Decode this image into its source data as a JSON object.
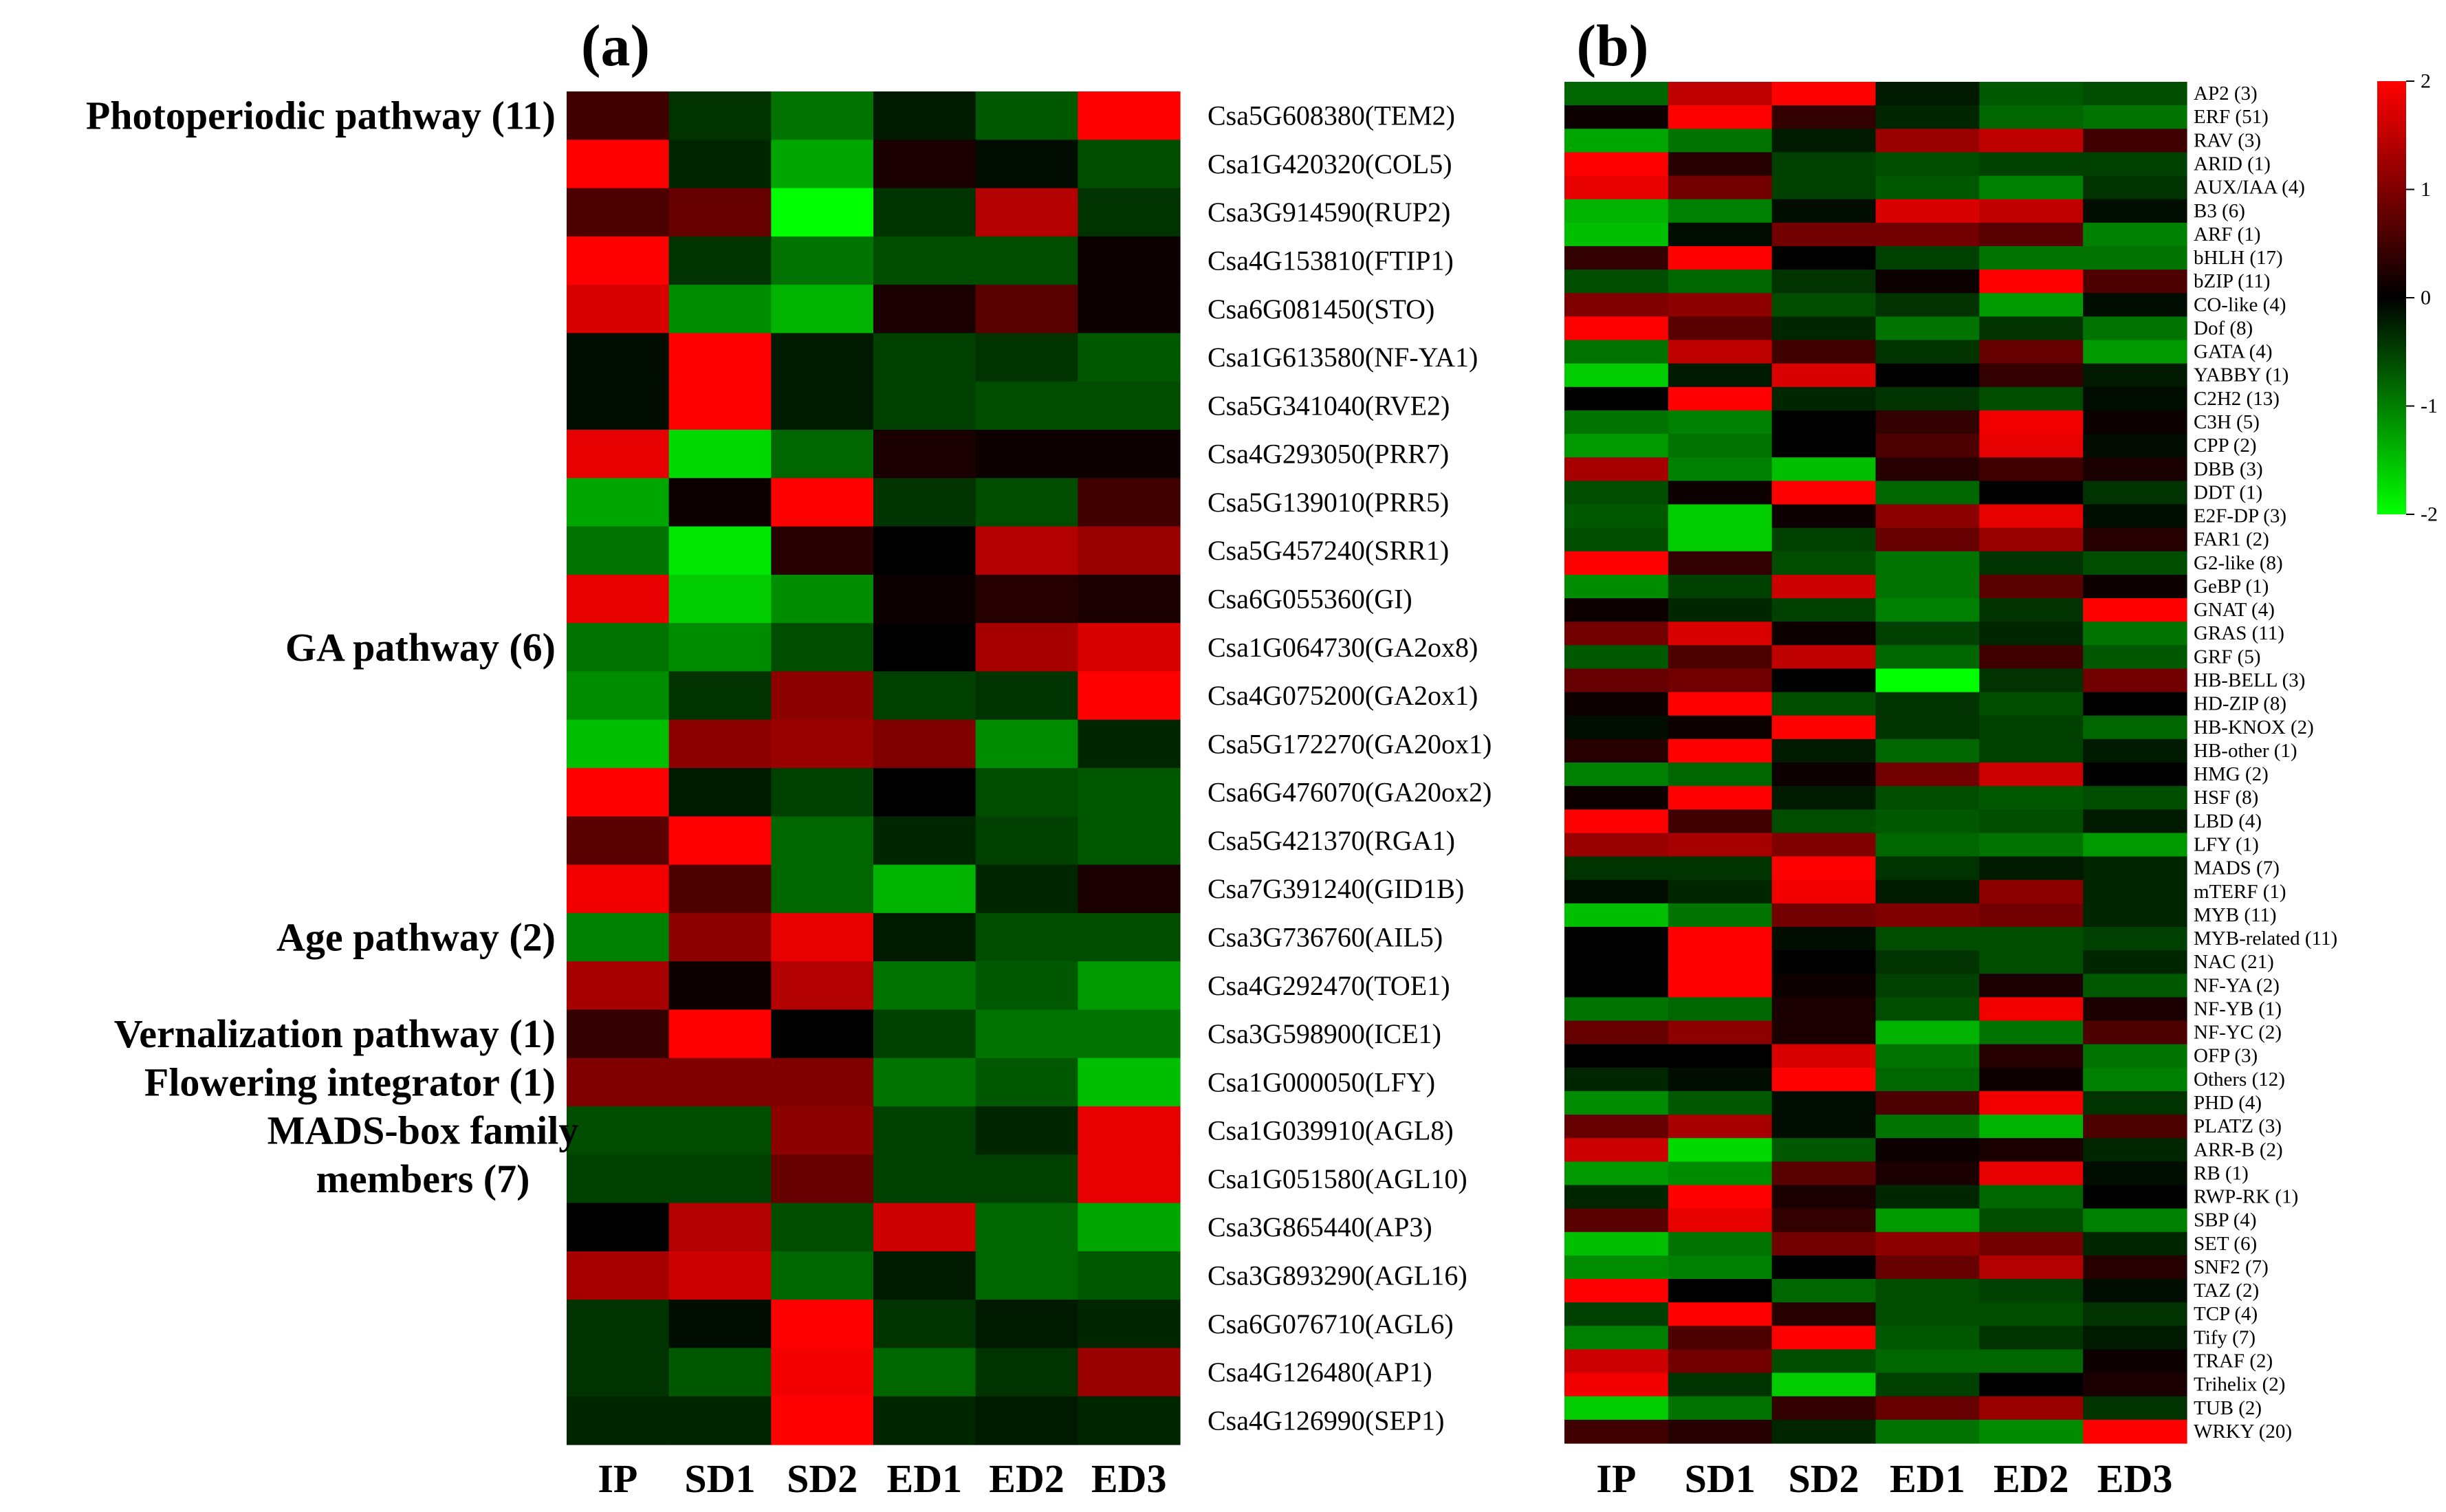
{
  "chart_data": [
    {
      "type": "heatmap",
      "panel_label": "(a)",
      "columns": [
        "IP",
        "SD1",
        "SD2",
        "ED1",
        "ED2",
        "ED3"
      ],
      "rows": [
        "Csa5G608380(TEM2)",
        "Csa1G420320(COL5)",
        "Csa3G914590(RUP2)",
        "Csa4G153810(FTIP1)",
        "Csa6G081450(STO)",
        "Csa1G613580(NF-YA1)",
        "Csa5G341040(RVE2)",
        "Csa4G293050(PRR7)",
        "Csa5G139010(PRR5)",
        "Csa5G457240(SRR1)",
        "Csa6G055360(GI)",
        "Csa1G064730(GA2ox8)",
        "Csa4G075200(GA2ox1)",
        "Csa5G172270(GA20ox1)",
        "Csa6G476070(GA20ox2)",
        "Csa5G421370(RGA1)",
        "Csa7G391240(GID1B)",
        "Csa3G736760(AIL5)",
        "Csa4G292470(TOE1)",
        "Csa3G598900(ICE1)",
        "Csa1G000050(LFY)",
        "Csa1G039910(AGL8)",
        "Csa1G051580(AGL10)",
        "Csa3G865440(AP3)",
        "Csa3G893290(AGL16)",
        "Csa6G076710(AGL6)",
        "Csa4G126480(AP1)",
        "Csa4G126990(SEP1)"
      ],
      "values": [
        [
          0.5,
          -0.4,
          -0.9,
          -0.2,
          -0.7,
          2.0
        ],
        [
          2.0,
          -0.3,
          -1.3,
          0.2,
          -0.1,
          -0.6
        ],
        [
          0.6,
          0.8,
          -2.0,
          -0.4,
          1.4,
          -0.4
        ],
        [
          2.0,
          -0.4,
          -0.9,
          -0.6,
          -0.6,
          0.1
        ],
        [
          1.7,
          -1.1,
          -1.4,
          0.2,
          0.7,
          0.1
        ],
        [
          -0.1,
          2.0,
          -0.2,
          -0.5,
          -0.4,
          -0.7
        ],
        [
          -0.1,
          2.0,
          -0.2,
          -0.5,
          -0.6,
          -0.6
        ],
        [
          1.8,
          -1.7,
          -0.8,
          0.2,
          0.1,
          0.1
        ],
        [
          -1.3,
          0.1,
          2.0,
          -0.4,
          -0.6,
          0.5
        ],
        [
          -0.9,
          -1.8,
          0.3,
          0.0,
          1.4,
          1.2
        ],
        [
          1.8,
          -1.6,
          -1.1,
          0.1,
          0.3,
          0.2
        ],
        [
          -0.9,
          -1.1,
          -0.6,
          0.0,
          1.3,
          1.7
        ],
        [
          -1.1,
          -0.4,
          1.1,
          -0.5,
          -0.4,
          2.0
        ],
        [
          -1.5,
          1.1,
          1.2,
          1.0,
          -1.1,
          -0.3
        ],
        [
          2.0,
          -0.2,
          -0.5,
          0.0,
          -0.6,
          -0.7
        ],
        [
          0.7,
          2.0,
          -0.8,
          -0.3,
          -0.5,
          -0.7
        ],
        [
          1.9,
          0.6,
          -0.8,
          -1.4,
          -0.3,
          0.2
        ],
        [
          -1.0,
          1.1,
          1.8,
          -0.2,
          -0.6,
          -0.6
        ],
        [
          1.3,
          0.1,
          1.4,
          -0.9,
          -0.7,
          -1.2
        ],
        [
          0.4,
          2.0,
          0.0,
          -0.5,
          -0.9,
          -0.9
        ],
        [
          1.0,
          1.0,
          1.0,
          -0.9,
          -0.7,
          -1.5
        ],
        [
          -0.6,
          -0.6,
          1.1,
          -0.5,
          -0.3,
          1.8
        ],
        [
          -0.5,
          -0.5,
          0.8,
          -0.5,
          -0.5,
          1.8
        ],
        [
          0.0,
          1.4,
          -0.6,
          1.6,
          -0.8,
          -1.3
        ],
        [
          1.3,
          1.6,
          -0.8,
          -0.2,
          -0.8,
          -0.7
        ],
        [
          -0.4,
          -0.1,
          2.0,
          -0.4,
          -0.2,
          -0.3
        ],
        [
          -0.4,
          -0.7,
          1.9,
          -0.8,
          -0.4,
          1.2
        ],
        [
          -0.3,
          -0.3,
          2.0,
          -0.3,
          -0.2,
          -0.3
        ]
      ],
      "pathway_labels": [
        {
          "text": "Photoperiodic pathway (11)",
          "row": 0
        },
        {
          "text": "GA pathway (6)",
          "row": 11
        },
        {
          "text": "Age pathway (2)",
          "row": 17
        },
        {
          "text": "Vernalization pathway (1)",
          "row": 19
        },
        {
          "text": "Flowering integrator (1)",
          "row": 20
        },
        {
          "text": "MADS-box family",
          "row": 21
        },
        {
          "text": "members (7)",
          "row": 22
        }
      ],
      "color_scale": {
        "low": "#00ff00",
        "mid": "#000000",
        "high": "#ff0000",
        "min": -2,
        "max": 2
      }
    },
    {
      "type": "heatmap",
      "panel_label": "(b)",
      "columns": [
        "IP",
        "SD1",
        "SD2",
        "ED1",
        "ED2",
        "ED3"
      ],
      "rows": [
        "AP2 (3)",
        "ERF (51)",
        "RAV (3)",
        "ARID (1)",
        "AUX/IAA (4)",
        "B3 (6)",
        "ARF (1)",
        "bHLH (17)",
        "bZIP (11)",
        "CO-like (4)",
        "Dof (8)",
        "GATA (4)",
        "YABBY (1)",
        "C2H2 (13)",
        "C3H (5)",
        "CPP (2)",
        "DBB (3)",
        "DDT (1)",
        "E2F-DP (3)",
        "FAR1 (2)",
        "G2-like (8)",
        "GeBP (1)",
        "GNAT (4)",
        "GRAS (11)",
        "GRF (5)",
        "HB-BELL (3)",
        "HD-ZIP (8)",
        "HB-KNOX (2)",
        "HB-other (1)",
        "HMG (2)",
        "HSF (8)",
        "LBD (4)",
        "LFY (1)",
        "MADS (7)",
        "mTERF (1)",
        "MYB (11)",
        "MYB-related (11)",
        "NAC (21)",
        "NF-YA (2)",
        "NF-YB (1)",
        "NF-YC (2)",
        "OFP (3)",
        "Others (12)",
        "PHD (4)",
        "PLATZ (3)",
        "ARR-B (2)",
        "RB (1)",
        "RWP-RK (1)",
        "SBP (4)",
        "SET (6)",
        "SNF2 (7)",
        "TAZ (2)",
        "TCP (4)",
        "Tify (7)",
        "TRAF (2)",
        "Trihelix (2)",
        "TUB (2)",
        "WRKY (20)"
      ],
      "values": [
        [
          -0.8,
          1.5,
          2.0,
          -0.2,
          -0.7,
          -0.6
        ],
        [
          0.1,
          2.0,
          0.4,
          -0.3,
          -0.8,
          -0.9
        ],
        [
          -1.3,
          -0.9,
          -0.2,
          1.2,
          1.5,
          0.5
        ],
        [
          2.0,
          0.3,
          -0.5,
          -0.6,
          -0.5,
          -0.5
        ],
        [
          1.8,
          0.9,
          -0.5,
          -0.7,
          -1.0,
          -0.4
        ],
        [
          -1.4,
          -1.0,
          -0.1,
          1.7,
          1.5,
          -0.1
        ],
        [
          -1.5,
          -0.1,
          0.9,
          0.9,
          0.7,
          -1.0
        ],
        [
          0.4,
          2.0,
          0.0,
          -0.5,
          -0.9,
          -0.9
        ],
        [
          -0.6,
          -0.8,
          -0.4,
          0.1,
          2.0,
          0.6
        ],
        [
          1.0,
          1.1,
          -0.6,
          -0.4,
          -1.2,
          -0.1
        ],
        [
          2.0,
          0.7,
          -0.3,
          -0.9,
          -0.4,
          -0.9
        ],
        [
          -0.9,
          1.5,
          0.5,
          -0.4,
          0.8,
          -1.2
        ],
        [
          -1.6,
          -0.2,
          1.7,
          0.0,
          0.4,
          -0.2
        ],
        [
          0.0,
          2.0,
          -0.3,
          -0.4,
          -0.6,
          -0.1
        ],
        [
          -0.9,
          -1.0,
          0.0,
          0.4,
          1.9,
          0.1
        ],
        [
          -1.2,
          -0.9,
          0.0,
          0.6,
          1.8,
          -0.1
        ],
        [
          1.3,
          -1.0,
          -1.5,
          0.3,
          0.5,
          0.2
        ],
        [
          -0.6,
          0.1,
          2.0,
          -0.8,
          0.0,
          -0.4
        ],
        [
          -0.7,
          -1.6,
          0.1,
          1.1,
          1.8,
          -0.1
        ],
        [
          -0.6,
          -1.6,
          -0.5,
          0.8,
          1.2,
          0.3
        ],
        [
          2.0,
          0.4,
          -0.6,
          -0.9,
          -0.4,
          -0.6
        ],
        [
          -1.1,
          -0.5,
          1.6,
          -0.9,
          0.7,
          0.1
        ],
        [
          0.1,
          -0.3,
          -0.5,
          -1.0,
          -0.4,
          2.0
        ],
        [
          0.9,
          1.7,
          0.1,
          -0.5,
          -0.3,
          -0.9
        ],
        [
          -0.7,
          0.6,
          1.5,
          -0.8,
          0.5,
          -0.7
        ],
        [
          0.8,
          0.9,
          0.0,
          -2.0,
          -0.4,
          0.9
        ],
        [
          0.1,
          2.0,
          -0.6,
          -0.4,
          -0.6,
          0.0
        ],
        [
          -0.1,
          0.1,
          2.0,
          -0.4,
          -0.5,
          -0.8
        ],
        [
          0.3,
          2.0,
          -0.2,
          -0.8,
          -0.5,
          -0.2
        ],
        [
          -1.0,
          -0.8,
          0.1,
          0.9,
          1.6,
          0.0
        ],
        [
          0.1,
          2.0,
          -0.2,
          -0.6,
          -0.7,
          -0.6
        ],
        [
          2.0,
          0.5,
          -0.6,
          -0.7,
          -0.6,
          -0.2
        ],
        [
          1.2,
          1.3,
          1.0,
          -0.8,
          -0.9,
          -1.2
        ],
        [
          -0.4,
          -0.4,
          2.0,
          -0.4,
          -0.2,
          -0.3
        ],
        [
          -0.1,
          -0.3,
          1.9,
          -0.2,
          1.1,
          -0.3
        ],
        [
          -1.5,
          -0.9,
          0.9,
          1.0,
          0.9,
          -0.3
        ],
        [
          0.0,
          2.0,
          -0.1,
          -0.6,
          -0.6,
          -0.5
        ],
        [
          0.0,
          2.0,
          0.0,
          -0.4,
          -0.6,
          -0.3
        ],
        [
          0.0,
          2.0,
          0.1,
          -0.5,
          0.2,
          -0.7
        ],
        [
          -0.9,
          -0.8,
          0.2,
          -0.6,
          1.9,
          0.2
        ],
        [
          0.8,
          1.1,
          0.2,
          -1.4,
          -0.9,
          0.6
        ],
        [
          0.0,
          0.0,
          1.7,
          -0.9,
          0.3,
          -0.9
        ],
        [
          -0.3,
          -0.1,
          2.0,
          -0.8,
          0.1,
          -1.0
        ],
        [
          -1.1,
          -0.7,
          -0.1,
          0.6,
          1.9,
          -0.4
        ],
        [
          0.8,
          1.3,
          -0.1,
          -0.9,
          -1.4,
          0.6
        ],
        [
          1.6,
          -1.7,
          -0.7,
          0.1,
          0.2,
          -0.3
        ],
        [
          -1.2,
          -1.1,
          0.7,
          0.2,
          1.8,
          -0.1
        ],
        [
          -0.3,
          2.0,
          0.2,
          -0.3,
          -0.8,
          0.0
        ],
        [
          0.7,
          1.8,
          0.4,
          -1.2,
          -0.6,
          -1.0
        ],
        [
          -1.5,
          -0.9,
          0.9,
          1.1,
          0.9,
          -0.3
        ],
        [
          -1.1,
          -1.0,
          0.0,
          0.8,
          1.4,
          0.3
        ],
        [
          2.0,
          0.0,
          -0.8,
          -0.6,
          -0.5,
          -0.1
        ],
        [
          -0.5,
          2.0,
          0.3,
          -0.6,
          -0.6,
          -0.4
        ],
        [
          -1.0,
          0.6,
          2.0,
          -0.7,
          -0.4,
          -0.2
        ],
        [
          1.6,
          0.9,
          -0.6,
          -0.8,
          -0.8,
          0.1
        ],
        [
          1.9,
          -0.4,
          -1.6,
          -0.5,
          0.0,
          0.2
        ],
        [
          -1.6,
          -0.9,
          0.4,
          0.8,
          1.2,
          -0.4
        ],
        [
          0.5,
          0.3,
          -0.3,
          -0.9,
          -1.1,
          2.0
        ]
      ],
      "color_scale": {
        "low": "#00ff00",
        "mid": "#000000",
        "high": "#ff0000",
        "min": -2,
        "max": 2
      },
      "legend_ticks": [
        "2",
        "1",
        "0",
        "-1",
        "-2"
      ]
    }
  ]
}
